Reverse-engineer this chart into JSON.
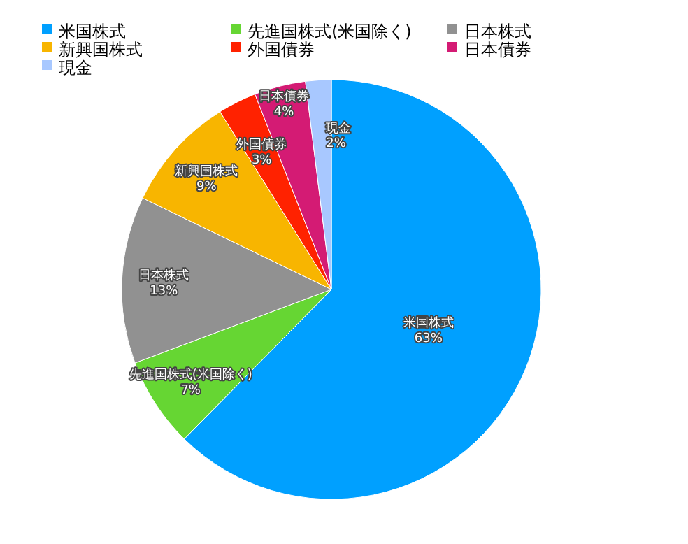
{
  "chart_data": {
    "type": "pie",
    "categories": [
      "米国株式",
      "先進国株式(米国除く)",
      "日本株式",
      "新興国株式",
      "外国債券",
      "日本債券",
      "現金"
    ],
    "values": [
      63,
      7,
      13,
      9,
      3,
      4,
      2
    ],
    "value_labels": [
      "63%",
      "7%",
      "13%",
      "9%",
      "3%",
      "4%",
      "2%"
    ],
    "colors": [
      "#00a0ff",
      "#66d633",
      "#919191",
      "#f8b500",
      "#ff2200",
      "#d41b74",
      "#a8c8ff"
    ],
    "legend": "top"
  }
}
